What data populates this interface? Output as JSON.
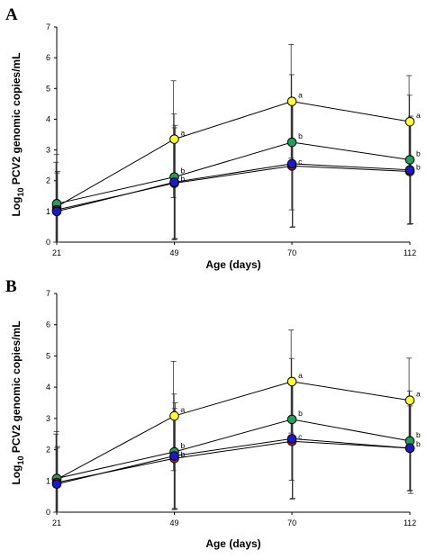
{
  "chart_data": [
    {
      "type": "line",
      "panel_label": "A",
      "xlabel": "Age (days)",
      "ylabel_prefix": "Log",
      "ylabel_subscript": "10",
      "ylabel_rest": " PCV2 genomic copies/mL",
      "x_categories": [
        "21",
        "49",
        "70",
        "112"
      ],
      "ylim": [
        0,
        7
      ],
      "y_ticks": [
        "0",
        "1",
        "2",
        "3",
        "4",
        "5",
        "6",
        "7"
      ],
      "series": [
        {
          "color": "#ffff33",
          "values": [
            1.15,
            3.35,
            4.58,
            3.92
          ],
          "error": [
            1.45,
            1.9,
            1.85,
            1.5
          ],
          "labels": [
            "",
            "a",
            "a",
            "a"
          ]
        },
        {
          "color": "#22a05a",
          "values": [
            1.25,
            2.12,
            3.25,
            2.68
          ],
          "error": [
            1.6,
            2.05,
            2.2,
            2.1
          ],
          "labels": [
            "",
            "b",
            "b",
            "b"
          ]
        },
        {
          "color": "#c0191e",
          "values": [
            1.05,
            1.92,
            2.48,
            2.3
          ],
          "error": [
            1.2,
            1.8,
            2.0,
            1.7
          ],
          "labels": [
            "",
            "b",
            "c",
            "b"
          ]
        },
        {
          "color": "#1a1acc",
          "values": [
            1.0,
            1.95,
            2.55,
            2.35
          ],
          "error": [
            1.3,
            1.85,
            2.05,
            1.75
          ],
          "labels": [
            "",
            "",
            "",
            ""
          ]
        }
      ]
    },
    {
      "type": "line",
      "panel_label": "B",
      "xlabel": "Age (days)",
      "ylabel_prefix": "Log",
      "ylabel_subscript": "10",
      "ylabel_rest": " PCV2 genomic copies/mL",
      "x_categories": [
        "21",
        "49",
        "70",
        "112"
      ],
      "ylim": [
        0,
        7
      ],
      "y_ticks": [
        "0",
        "1",
        "2",
        "3",
        "4",
        "5",
        "6",
        "7"
      ],
      "series": [
        {
          "color": "#ffff33",
          "values": [
            1.05,
            3.08,
            4.18,
            3.58
          ],
          "error": [
            1.45,
            1.75,
            1.65,
            1.35
          ],
          "labels": [
            "",
            "a",
            "a",
            "a"
          ]
        },
        {
          "color": "#22a05a",
          "values": [
            1.08,
            1.93,
            2.97,
            2.28
          ],
          "error": [
            1.5,
            1.85,
            1.95,
            1.6
          ],
          "labels": [
            "",
            "b",
            "b",
            "b"
          ]
        },
        {
          "color": "#c0191e",
          "values": [
            0.95,
            1.72,
            2.27,
            2.05
          ],
          "error": [
            1.1,
            1.6,
            1.85,
            1.35
          ],
          "labels": [
            "",
            "b",
            "c",
            "b"
          ]
        },
        {
          "color": "#1a1acc",
          "values": [
            0.9,
            1.8,
            2.35,
            2.05
          ],
          "error": [
            1.2,
            1.7,
            1.9,
            1.45
          ],
          "labels": [
            "",
            "",
            "",
            ""
          ]
        }
      ]
    }
  ]
}
